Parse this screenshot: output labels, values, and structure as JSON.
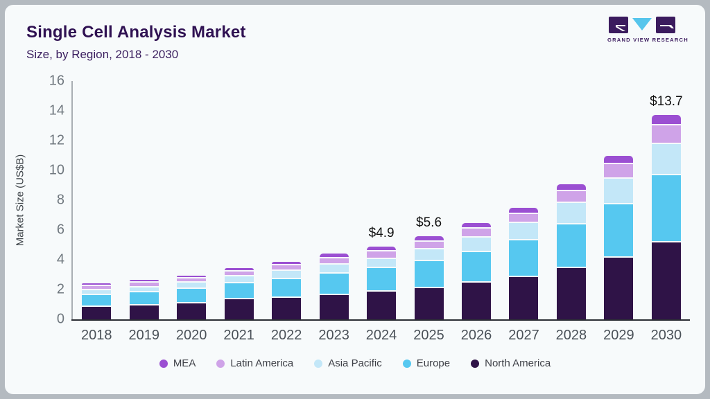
{
  "header": {
    "title": "Single Cell Analysis Market",
    "subtitle": "Size, by Region, 2018 - 2030"
  },
  "logo": {
    "text": "GRAND VIEW RESEARCH"
  },
  "chart_data": {
    "type": "bar",
    "stacked": true,
    "title": "Single Cell Analysis Market",
    "subtitle": "Size, by Region, 2018 - 2030",
    "xlabel": "",
    "ylabel": "Market Size (US$B)",
    "ylim": [
      0,
      16
    ],
    "yticks": [
      "0",
      "2",
      "4",
      "6",
      "8",
      "10",
      "12",
      "14",
      "16"
    ],
    "grid": false,
    "legend_position": "bottom",
    "categories": [
      "2018",
      "2019",
      "2020",
      "2021",
      "2022",
      "2023",
      "2024",
      "2025",
      "2026",
      "2027",
      "2028",
      "2029",
      "2030"
    ],
    "series": [
      {
        "name": "North America",
        "color": "#2f1347",
        "values": [
          1.0,
          1.1,
          1.25,
          1.5,
          1.6,
          1.8,
          2.0,
          2.25,
          2.6,
          3.0,
          3.6,
          4.3,
          5.3
        ]
      },
      {
        "name": "Europe",
        "color": "#56c8f0",
        "values": [
          0.8,
          0.9,
          1.0,
          1.1,
          1.3,
          1.45,
          1.6,
          1.85,
          2.1,
          2.5,
          2.95,
          3.6,
          4.55
        ]
      },
      {
        "name": "Asia Pacific",
        "color": "#c3e7f8",
        "values": [
          0.3,
          0.3,
          0.35,
          0.4,
          0.5,
          0.55,
          0.6,
          0.75,
          0.95,
          1.1,
          1.4,
          1.7,
          2.05
        ]
      },
      {
        "name": "Latin America",
        "color": "#cfa3e8",
        "values": [
          0.2,
          0.22,
          0.22,
          0.3,
          0.3,
          0.38,
          0.45,
          0.45,
          0.5,
          0.55,
          0.72,
          0.9,
          1.2
        ]
      },
      {
        "name": "MEA",
        "color": "#9b4fd2",
        "values": [
          0.1,
          0.12,
          0.13,
          0.15,
          0.15,
          0.22,
          0.25,
          0.3,
          0.3,
          0.35,
          0.38,
          0.46,
          0.6
        ]
      }
    ],
    "annotations": [
      {
        "category": "2024",
        "label": "$4.9"
      },
      {
        "category": "2025",
        "label": "$5.6"
      },
      {
        "category": "2030",
        "label": "$13.7"
      }
    ],
    "legend": [
      {
        "name": "MEA",
        "color": "#9b4fd2"
      },
      {
        "name": "Latin America",
        "color": "#cfa3e8"
      },
      {
        "name": "Asia Pacific",
        "color": "#c3e7f8"
      },
      {
        "name": "Europe",
        "color": "#56c8f0"
      },
      {
        "name": "North America",
        "color": "#2f1347"
      }
    ]
  }
}
